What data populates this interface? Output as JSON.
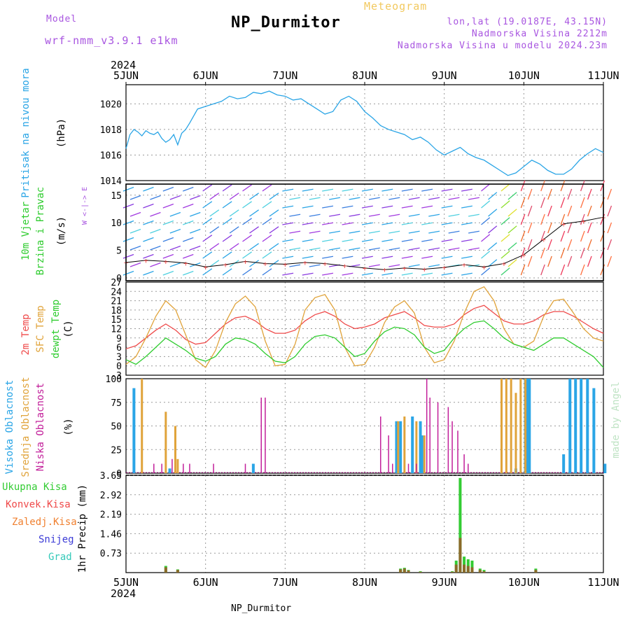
{
  "header": {
    "model_label": "Model",
    "model_name": "wrf-nmm_v3.9.1 e1km",
    "title": "NP_Durmitor",
    "meteogram_label": "Meteogram",
    "coords": "lon,lat (19.0187E, 43.15N)",
    "altitude": "Nadmorska Visina 2212m",
    "model_altitude": "Nadmorska Visina u modelu 2024.23m",
    "footer_name": "NP_Durmitor",
    "watermark": "made by Angel"
  },
  "time_axis": {
    "year": "2024",
    "labels": [
      "5JUN",
      "6JUN",
      "7JUN",
      "8JUN",
      "9JUN",
      "10JUN",
      "11JUN"
    ]
  },
  "colors": {
    "pressure": "#2aa5e6",
    "temp2m": "#ef4a4a",
    "sfc": "#e0a33a",
    "dewpt": "#2fcc2f",
    "high": "#2aa5e6",
    "mid": "#e0a33a",
    "low": "#c21f9a",
    "total_precip": "#33cc33",
    "conv_precip": "#ef4a4a",
    "frozen_precip": "#f08030",
    "snow": "#3b3bd6",
    "grad": "#33c9b8"
  },
  "chart_data": [
    {
      "type": "line",
      "panel": "pressure",
      "ylabel": [
        "Pritisak na nivou mora",
        "(hPa)"
      ],
      "yticks": [
        "1014",
        "1016",
        "1018",
        "1020"
      ],
      "ylim": [
        1014,
        1021.5
      ],
      "x": [
        0,
        0.05,
        0.1,
        0.15,
        0.2,
        0.25,
        0.3,
        0.35,
        0.4,
        0.45,
        0.5,
        0.55,
        0.6,
        0.65,
        0.7,
        0.75,
        0.8,
        0.9,
        1.0,
        1.1,
        1.2,
        1.3,
        1.4,
        1.5,
        1.6,
        1.7,
        1.8,
        1.9,
        2.0,
        2.1,
        2.2,
        2.3,
        2.4,
        2.5,
        2.6,
        2.7,
        2.8,
        2.9,
        3.0,
        3.1,
        3.2,
        3.3,
        3.4,
        3.5,
        3.6,
        3.7,
        3.8,
        3.9,
        4.0,
        4.1,
        4.2,
        4.3,
        4.4,
        4.5,
        4.6,
        4.7,
        4.8,
        4.9,
        5.0,
        5.1,
        5.2,
        5.3,
        5.4,
        5.5,
        5.6,
        5.7,
        5.8,
        5.9,
        6.0
      ],
      "series": [
        {
          "values": [
            1016.5,
            1017.6,
            1018.0,
            1017.8,
            1017.5,
            1017.9,
            1017.7,
            1017.6,
            1017.8,
            1017.3,
            1017.0,
            1017.2,
            1017.6,
            1016.8,
            1017.7,
            1018.0,
            1018.5,
            1019.6,
            1019.8,
            1020.0,
            1020.2,
            1020.6,
            1020.4,
            1020.5,
            1020.9,
            1020.8,
            1021.0,
            1020.7,
            1020.6,
            1020.3,
            1020.4,
            1020.0,
            1019.6,
            1019.2,
            1019.4,
            1020.3,
            1020.6,
            1020.2,
            1019.4,
            1018.9,
            1018.3,
            1018.0,
            1017.8,
            1017.6,
            1017.2,
            1017.4,
            1017.0,
            1016.4,
            1016.0,
            1016.3,
            1016.6,
            1016.1,
            1015.8,
            1015.6,
            1015.2,
            1014.8,
            1014.4,
            1014.6,
            1015.1,
            1015.6,
            1015.3,
            1014.8,
            1014.5,
            1014.5,
            1014.9,
            1015.6,
            1016.1,
            1016.5,
            1016.2
          ]
        }
      ]
    },
    {
      "type": "scatter",
      "panel": "wind",
      "ylabel": [
        "10m Vjetar",
        "Brzina i Pravac",
        "(m/s)"
      ],
      "yticks": [
        "0",
        "5",
        "10",
        "15"
      ],
      "ylim": [
        -0.5,
        17
      ],
      "x": [
        0,
        0.25,
        0.5,
        0.75,
        1,
        1.25,
        1.5,
        1.75,
        2,
        2.25,
        2.5,
        2.75,
        3,
        3.25,
        3.5,
        3.75,
        4,
        4.25,
        4.5,
        4.75,
        5,
        5.25,
        5.5,
        5.75,
        6
      ],
      "series": [
        {
          "values": [
            2.8,
            3.2,
            3.0,
            2.7,
            2.0,
            2.4,
            3.0,
            2.6,
            2.5,
            2.8,
            2.6,
            2.2,
            1.8,
            1.5,
            1.8,
            1.6,
            1.9,
            2.4,
            2.0,
            2.6,
            4.2,
            7.0,
            9.8,
            10.3,
            11.0
          ]
        }
      ]
    },
    {
      "type": "line",
      "panel": "temperature",
      "ylabel": [
        "2m Temp",
        "SFC Temp",
        "dewpt Temp",
        "(C)"
      ],
      "yticks": [
        "-3",
        "0",
        "3",
        "6",
        "9",
        "12",
        "15",
        "18",
        "21",
        "24",
        "27"
      ],
      "ylim": [
        -3,
        27
      ],
      "x": [
        0,
        0.125,
        0.25,
        0.375,
        0.5,
        0.625,
        0.75,
        0.875,
        1,
        1.125,
        1.25,
        1.375,
        1.5,
        1.625,
        1.75,
        1.875,
        2,
        2.125,
        2.25,
        2.375,
        2.5,
        2.625,
        2.75,
        2.875,
        3,
        3.125,
        3.25,
        3.375,
        3.5,
        3.625,
        3.75,
        3.875,
        4,
        4.125,
        4.25,
        4.375,
        4.5,
        4.625,
        4.75,
        4.875,
        5,
        5.125,
        5.25,
        5.375,
        5.5,
        5.625,
        5.75,
        5.875,
        6
      ],
      "series": [
        {
          "name": "2m Temp",
          "values": [
            5.5,
            6.5,
            9,
            11.5,
            13.5,
            11.5,
            8.5,
            7,
            7.5,
            10.5,
            13.5,
            15.5,
            16,
            14.5,
            12,
            10.5,
            10.5,
            11.5,
            14.5,
            16.5,
            17.5,
            16,
            13.5,
            12,
            12.5,
            13.5,
            15.5,
            16.5,
            17.5,
            15.5,
            13,
            12.5,
            12.5,
            13.5,
            16.5,
            18.5,
            19.5,
            17,
            14.5,
            13.5,
            13.5,
            14.5,
            16.5,
            17.5,
            17.5,
            16,
            14,
            12,
            10.5
          ]
        },
        {
          "name": "SFC Temp",
          "values": [
            0.5,
            3,
            9,
            16,
            21,
            18,
            10,
            2,
            -0.5,
            5,
            14,
            20,
            22.5,
            19,
            8,
            0,
            0.5,
            7,
            18,
            22,
            23,
            18,
            6,
            0,
            0.5,
            6,
            14,
            19,
            21,
            17,
            6,
            1,
            2,
            8,
            17,
            24,
            25.5,
            21,
            12,
            7,
            6,
            8,
            16,
            21,
            21.5,
            17,
            12,
            9,
            8
          ]
        },
        {
          "name": "dewpt Temp",
          "values": [
            2,
            0.5,
            3,
            6,
            9,
            7,
            5,
            2.5,
            1.5,
            3,
            7,
            9,
            8.5,
            7,
            4,
            1.5,
            1,
            3,
            7,
            9.5,
            10,
            9,
            6,
            3,
            4,
            8,
            11,
            12.5,
            12,
            10,
            6,
            4,
            5,
            9,
            12,
            14,
            14.5,
            12,
            9,
            7,
            6,
            5,
            7,
            9,
            9,
            7,
            5,
            3,
            -0.5
          ]
        }
      ]
    },
    {
      "type": "bar",
      "panel": "clouds",
      "ylabel": [
        "Visoka Oblacnost",
        "Srednja Oblacnost",
        "Niska Oblacnost",
        "(%)"
      ],
      "yticks": [
        "0",
        "25",
        "50",
        "75",
        "100"
      ],
      "ylim": [
        0,
        100
      ],
      "series": [
        {
          "name": "Visoka Oblacnost",
          "x": [
            0.1,
            0.55,
            1.6,
            3.4,
            3.45,
            3.6,
            3.7,
            3.72,
            4.9,
            5.02,
            5.05,
            5.07,
            5.5,
            5.58,
            5.65,
            5.72,
            5.8,
            5.88,
            6.02
          ],
          "values": [
            90,
            5,
            10,
            55,
            55,
            60,
            55,
            40,
            5,
            100,
            100,
            100,
            20,
            100,
            100,
            100,
            100,
            90,
            10
          ]
        },
        {
          "name": "Srednja Oblacnost",
          "x": [
            0.2,
            0.5,
            0.62,
            0.65,
            3.42,
            3.5,
            3.65,
            3.75,
            4.72,
            4.78,
            4.84,
            4.9,
            4.96,
            5.02
          ],
          "values": [
            100,
            65,
            50,
            15,
            55,
            60,
            55,
            40,
            100,
            100,
            100,
            85,
            100,
            100
          ]
        },
        {
          "name": "Niska Oblacnost",
          "x": [
            0.35,
            0.45,
            0.58,
            0.72,
            0.8,
            1.1,
            1.5,
            1.7,
            1.75,
            3.2,
            3.3,
            3.35,
            3.55,
            3.65,
            3.78,
            3.82,
            3.92,
            4.05,
            4.1,
            4.17,
            4.25,
            4.3
          ],
          "values": [
            10,
            10,
            15,
            10,
            10,
            10,
            10,
            80,
            80,
            60,
            40,
            10,
            10,
            10,
            100,
            80,
            75,
            70,
            55,
            45,
            20,
            10
          ]
        }
      ]
    },
    {
      "type": "bar",
      "panel": "precip",
      "ylabel": [
        "1hr Precip (mm)"
      ],
      "legend": [
        "Ukupna Kisa",
        "Konvek.Kisa",
        "Zaledj.Kisa",
        "Snijeg",
        "Grad"
      ],
      "yticks": [
        "0.73",
        "1.46",
        "2.19",
        "2.92",
        "3.65"
      ],
      "ylim": [
        0,
        3.65
      ],
      "x": [
        0.5,
        0.65,
        3.45,
        3.5,
        3.55,
        3.7,
        4.1,
        4.15,
        4.2,
        4.25,
        4.3,
        4.35,
        4.45,
        4.5,
        5.15
      ],
      "series": [
        {
          "name": "Ukupna Kisa",
          "values": [
            0.25,
            0.12,
            0.15,
            0.18,
            0.1,
            0.05,
            0.05,
            0.45,
            3.55,
            0.6,
            0.5,
            0.45,
            0.15,
            0.1,
            0.15
          ]
        },
        {
          "name": "Konvek.Kisa",
          "values": [
            0.2,
            0.1,
            0.12,
            0.15,
            0.08,
            0.03,
            0.03,
            0.3,
            1.3,
            0.3,
            0.25,
            0.2,
            0.1,
            0.05,
            0.1
          ]
        }
      ]
    }
  ]
}
